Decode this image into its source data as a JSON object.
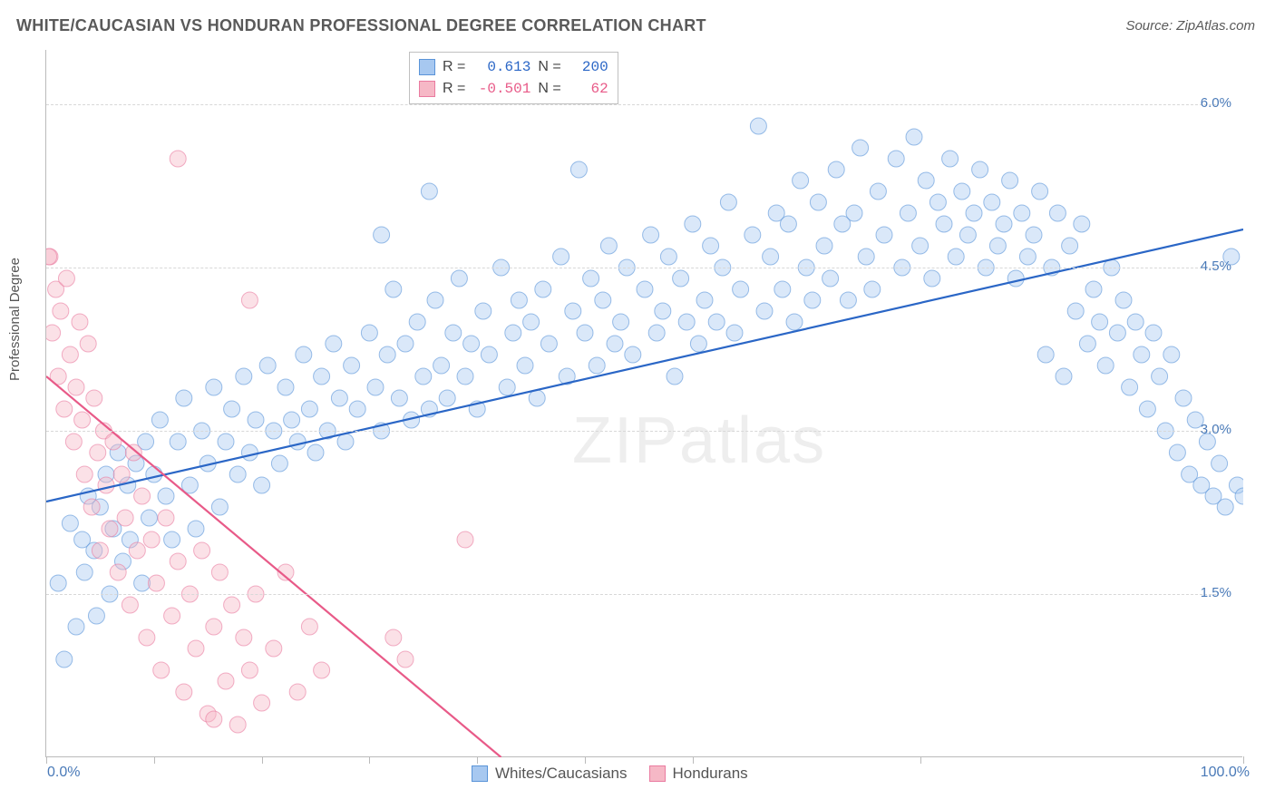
{
  "title": "WHITE/CAUCASIAN VS HONDURAN PROFESSIONAL DEGREE CORRELATION CHART",
  "source": "Source: ZipAtlas.com",
  "watermark": "ZIPatlas",
  "ylabel": "Professional Degree",
  "chart": {
    "type": "scatter",
    "xlim": [
      0,
      100
    ],
    "ylim": [
      0,
      6.5
    ],
    "yticks": [
      {
        "v": 1.5,
        "label": "1.5%"
      },
      {
        "v": 3.0,
        "label": "3.0%"
      },
      {
        "v": 4.5,
        "label": "4.5%"
      },
      {
        "v": 6.0,
        "label": "6.0%"
      }
    ],
    "xticks": [
      0,
      9,
      18,
      27,
      36,
      45,
      54,
      73,
      100
    ],
    "xstart_label": "0.0%",
    "xend_label": "100.0%",
    "grid_color": "#d8d8d8",
    "border_color": "#bbbbbb",
    "background_color": "#ffffff",
    "marker_radius": 9,
    "marker_opacity": 0.42,
    "line_width": 2.2,
    "series": [
      {
        "name": "Whites/Caucasians",
        "fill": "#a7c8f0",
        "stroke": "#5a94d8",
        "line_color": "#2a66c6",
        "R": "0.613",
        "N": "200",
        "trend": {
          "x1": 0,
          "y1": 2.35,
          "x2": 100,
          "y2": 4.85
        },
        "points": [
          [
            1,
            1.6
          ],
          [
            1.5,
            0.9
          ],
          [
            2,
            2.15
          ],
          [
            2.5,
            1.2
          ],
          [
            3,
            2.0
          ],
          [
            3.2,
            1.7
          ],
          [
            3.5,
            2.4
          ],
          [
            4,
            1.9
          ],
          [
            4.2,
            1.3
          ],
          [
            4.5,
            2.3
          ],
          [
            5,
            2.6
          ],
          [
            5.3,
            1.5
          ],
          [
            5.6,
            2.1
          ],
          [
            6,
            2.8
          ],
          [
            6.4,
            1.8
          ],
          [
            6.8,
            2.5
          ],
          [
            7,
            2.0
          ],
          [
            7.5,
            2.7
          ],
          [
            8,
            1.6
          ],
          [
            8.3,
            2.9
          ],
          [
            8.6,
            2.2
          ],
          [
            9,
            2.6
          ],
          [
            9.5,
            3.1
          ],
          [
            10,
            2.4
          ],
          [
            10.5,
            2.0
          ],
          [
            11,
            2.9
          ],
          [
            11.5,
            3.3
          ],
          [
            12,
            2.5
          ],
          [
            12.5,
            2.1
          ],
          [
            13,
            3.0
          ],
          [
            13.5,
            2.7
          ],
          [
            14,
            3.4
          ],
          [
            14.5,
            2.3
          ],
          [
            15,
            2.9
          ],
          [
            15.5,
            3.2
          ],
          [
            16,
            2.6
          ],
          [
            16.5,
            3.5
          ],
          [
            17,
            2.8
          ],
          [
            17.5,
            3.1
          ],
          [
            18,
            2.5
          ],
          [
            18.5,
            3.6
          ],
          [
            19,
            3.0
          ],
          [
            19.5,
            2.7
          ],
          [
            20,
            3.4
          ],
          [
            20.5,
            3.1
          ],
          [
            21,
            2.9
          ],
          [
            21.5,
            3.7
          ],
          [
            22,
            3.2
          ],
          [
            22.5,
            2.8
          ],
          [
            23,
            3.5
          ],
          [
            23.5,
            3.0
          ],
          [
            24,
            3.8
          ],
          [
            24.5,
            3.3
          ],
          [
            25,
            2.9
          ],
          [
            25.5,
            3.6
          ],
          [
            26,
            3.2
          ],
          [
            27,
            3.9
          ],
          [
            27.5,
            3.4
          ],
          [
            28,
            3.0
          ],
          [
            28.5,
            3.7
          ],
          [
            29,
            4.3
          ],
          [
            29.5,
            3.3
          ],
          [
            30,
            3.8
          ],
          [
            30.5,
            3.1
          ],
          [
            31,
            4.0
          ],
          [
            31.5,
            3.5
          ],
          [
            32,
            3.2
          ],
          [
            32.5,
            4.2
          ],
          [
            33,
            3.6
          ],
          [
            33.5,
            3.3
          ],
          [
            34,
            3.9
          ],
          [
            34.5,
            4.4
          ],
          [
            35,
            3.5
          ],
          [
            35.5,
            3.8
          ],
          [
            36,
            3.2
          ],
          [
            36.5,
            4.1
          ],
          [
            37,
            3.7
          ],
          [
            38,
            4.5
          ],
          [
            38.5,
            3.4
          ],
          [
            39,
            3.9
          ],
          [
            39.5,
            4.2
          ],
          [
            40,
            3.6
          ],
          [
            40.5,
            4.0
          ],
          [
            41,
            3.3
          ],
          [
            41.5,
            4.3
          ],
          [
            42,
            3.8
          ],
          [
            43,
            4.6
          ],
          [
            43.5,
            3.5
          ],
          [
            44,
            4.1
          ],
          [
            44.5,
            5.4
          ],
          [
            45,
            3.9
          ],
          [
            45.5,
            4.4
          ],
          [
            46,
            3.6
          ],
          [
            46.5,
            4.2
          ],
          [
            47,
            4.7
          ],
          [
            47.5,
            3.8
          ],
          [
            48,
            4.0
          ],
          [
            48.5,
            4.5
          ],
          [
            49,
            3.7
          ],
          [
            50,
            4.3
          ],
          [
            50.5,
            4.8
          ],
          [
            51,
            3.9
          ],
          [
            51.5,
            4.1
          ],
          [
            52,
            4.6
          ],
          [
            52.5,
            3.5
          ],
          [
            53,
            4.4
          ],
          [
            53.5,
            4.0
          ],
          [
            54,
            4.9
          ],
          [
            54.5,
            3.8
          ],
          [
            55,
            4.2
          ],
          [
            55.5,
            4.7
          ],
          [
            56,
            4.0
          ],
          [
            56.5,
            4.5
          ],
          [
            57,
            5.1
          ],
          [
            57.5,
            3.9
          ],
          [
            58,
            4.3
          ],
          [
            59,
            4.8
          ],
          [
            59.5,
            5.8
          ],
          [
            60,
            4.1
          ],
          [
            60.5,
            4.6
          ],
          [
            61,
            5.0
          ],
          [
            61.5,
            4.3
          ],
          [
            62,
            4.9
          ],
          [
            62.5,
            4.0
          ],
          [
            63,
            5.3
          ],
          [
            63.5,
            4.5
          ],
          [
            64,
            4.2
          ],
          [
            64.5,
            5.1
          ],
          [
            65,
            4.7
          ],
          [
            65.5,
            4.4
          ],
          [
            66,
            5.4
          ],
          [
            66.5,
            4.9
          ],
          [
            67,
            4.2
          ],
          [
            67.5,
            5.0
          ],
          [
            68,
            5.6
          ],
          [
            68.5,
            4.6
          ],
          [
            69,
            4.3
          ],
          [
            69.5,
            5.2
          ],
          [
            70,
            4.8
          ],
          [
            71,
            5.5
          ],
          [
            71.5,
            4.5
          ],
          [
            72,
            5.0
          ],
          [
            72.5,
            5.7
          ],
          [
            73,
            4.7
          ],
          [
            73.5,
            5.3
          ],
          [
            74,
            4.4
          ],
          [
            74.5,
            5.1
          ],
          [
            75,
            4.9
          ],
          [
            75.5,
            5.5
          ],
          [
            76,
            4.6
          ],
          [
            76.5,
            5.2
          ],
          [
            77,
            4.8
          ],
          [
            77.5,
            5.0
          ],
          [
            78,
            5.4
          ],
          [
            78.5,
            4.5
          ],
          [
            79,
            5.1
          ],
          [
            79.5,
            4.7
          ],
          [
            80,
            4.9
          ],
          [
            80.5,
            5.3
          ],
          [
            81,
            4.4
          ],
          [
            81.5,
            5.0
          ],
          [
            82,
            4.6
          ],
          [
            82.5,
            4.8
          ],
          [
            83,
            5.2
          ],
          [
            83.5,
            3.7
          ],
          [
            84,
            4.5
          ],
          [
            84.5,
            5.0
          ],
          [
            85,
            3.5
          ],
          [
            85.5,
            4.7
          ],
          [
            86,
            4.1
          ],
          [
            86.5,
            4.9
          ],
          [
            87,
            3.8
          ],
          [
            87.5,
            4.3
          ],
          [
            88,
            4.0
          ],
          [
            88.5,
            3.6
          ],
          [
            89,
            4.5
          ],
          [
            89.5,
            3.9
          ],
          [
            90,
            4.2
          ],
          [
            90.5,
            3.4
          ],
          [
            91,
            4.0
          ],
          [
            91.5,
            3.7
          ],
          [
            92,
            3.2
          ],
          [
            92.5,
            3.9
          ],
          [
            93,
            3.5
          ],
          [
            93.5,
            3.0
          ],
          [
            94,
            3.7
          ],
          [
            94.5,
            2.8
          ],
          [
            95,
            3.3
          ],
          [
            95.5,
            2.6
          ],
          [
            96,
            3.1
          ],
          [
            96.5,
            2.5
          ],
          [
            97,
            2.9
          ],
          [
            97.5,
            2.4
          ],
          [
            98,
            2.7
          ],
          [
            98.5,
            2.3
          ],
          [
            99,
            4.6
          ],
          [
            99.5,
            2.5
          ],
          [
            100,
            2.4
          ],
          [
            28,
            4.8
          ],
          [
            32,
            5.2
          ]
        ]
      },
      {
        "name": "Hondurans",
        "fill": "#f6b8c6",
        "stroke": "#ea7ba0",
        "line_color": "#e85a88",
        "R": "-0.501",
        "N": "62",
        "trend": {
          "x1": 0,
          "y1": 3.5,
          "x2": 38,
          "y2": 0.0
        },
        "points": [
          [
            0.3,
            4.6
          ],
          [
            0.5,
            3.9
          ],
          [
            0.8,
            4.3
          ],
          [
            1,
            3.5
          ],
          [
            1.2,
            4.1
          ],
          [
            1.5,
            3.2
          ],
          [
            1.7,
            4.4
          ],
          [
            2,
            3.7
          ],
          [
            2.3,
            2.9
          ],
          [
            2.5,
            3.4
          ],
          [
            2.8,
            4.0
          ],
          [
            3,
            3.1
          ],
          [
            3.2,
            2.6
          ],
          [
            3.5,
            3.8
          ],
          [
            3.8,
            2.3
          ],
          [
            4,
            3.3
          ],
          [
            4.3,
            2.8
          ],
          [
            4.5,
            1.9
          ],
          [
            4.8,
            3.0
          ],
          [
            5,
            2.5
          ],
          [
            5.3,
            2.1
          ],
          [
            5.6,
            2.9
          ],
          [
            6,
            1.7
          ],
          [
            6.3,
            2.6
          ],
          [
            6.6,
            2.2
          ],
          [
            7,
            1.4
          ],
          [
            7.3,
            2.8
          ],
          [
            7.6,
            1.9
          ],
          [
            8,
            2.4
          ],
          [
            8.4,
            1.1
          ],
          [
            8.8,
            2.0
          ],
          [
            9.2,
            1.6
          ],
          [
            9.6,
            0.8
          ],
          [
            10,
            2.2
          ],
          [
            10.5,
            1.3
          ],
          [
            11,
            1.8
          ],
          [
            11.5,
            0.6
          ],
          [
            12,
            1.5
          ],
          [
            12.5,
            1.0
          ],
          [
            13,
            1.9
          ],
          [
            13.5,
            0.4
          ],
          [
            14,
            1.2
          ],
          [
            14.5,
            1.7
          ],
          [
            15,
            0.7
          ],
          [
            15.5,
            1.4
          ],
          [
            16,
            0.3
          ],
          [
            16.5,
            1.1
          ],
          [
            17,
            0.8
          ],
          [
            17.5,
            1.5
          ],
          [
            18,
            0.5
          ],
          [
            19,
            1.0
          ],
          [
            20,
            1.7
          ],
          [
            21,
            0.6
          ],
          [
            22,
            1.2
          ],
          [
            23,
            0.8
          ],
          [
            11,
            5.5
          ],
          [
            17,
            4.2
          ],
          [
            29,
            1.1
          ],
          [
            30,
            0.9
          ],
          [
            35,
            2.0
          ],
          [
            0.2,
            4.6
          ],
          [
            14,
            0.35
          ]
        ]
      }
    ]
  },
  "legend": {
    "items": [
      {
        "label": "Whites/Caucasians",
        "fill": "#a7c8f0",
        "stroke": "#5a94d8"
      },
      {
        "label": "Hondurans",
        "fill": "#f6b8c6",
        "stroke": "#ea7ba0"
      }
    ]
  }
}
